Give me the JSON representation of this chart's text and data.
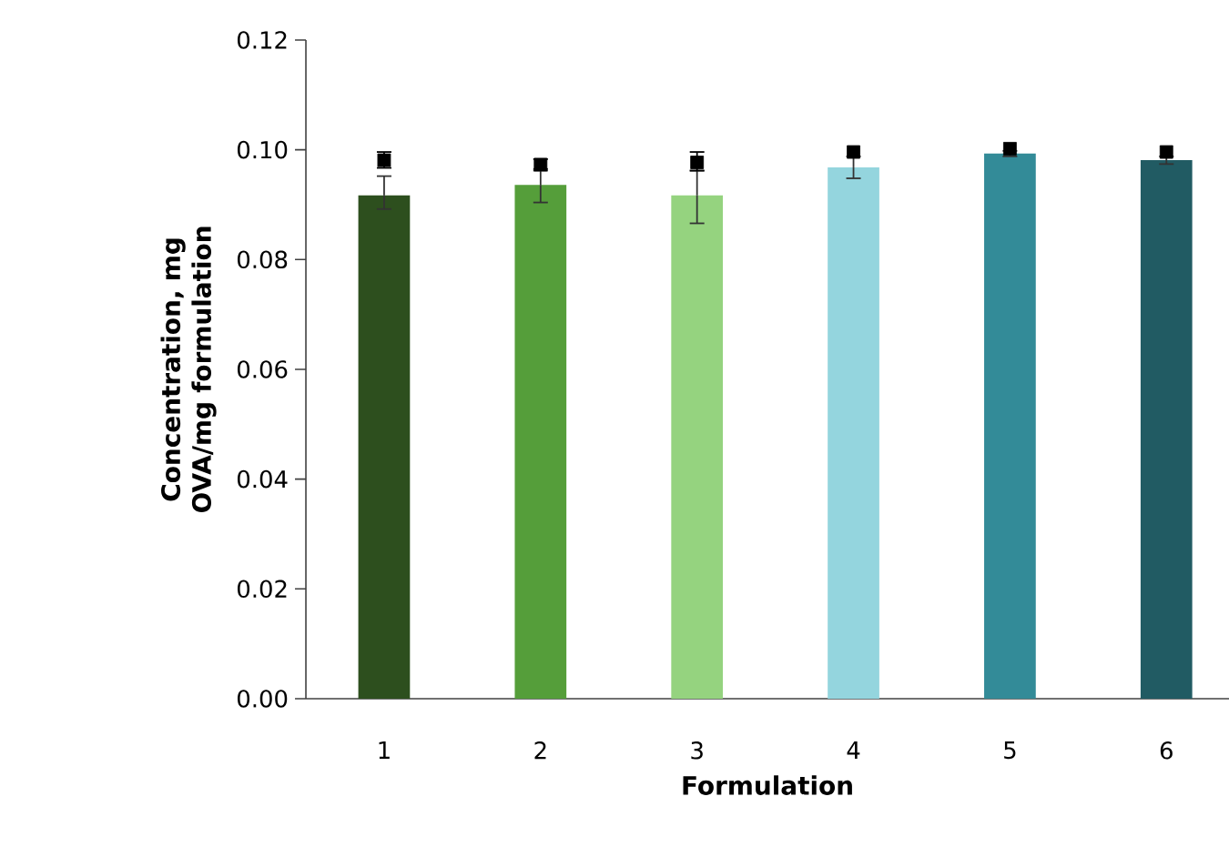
{
  "chart_data": {
    "type": "bar",
    "xlabel": "Formulation",
    "ylabel": "Concentration, mg OVA/mg formulation",
    "categories": [
      "1",
      "2",
      "3",
      "4",
      "5",
      "6"
    ],
    "ylim": [
      0,
      0.12
    ],
    "yticks": [
      {
        "value": 0,
        "label": "0.00"
      },
      {
        "value": 0.02,
        "label": "0.02"
      },
      {
        "value": 0.04,
        "label": "0.04"
      },
      {
        "value": 0.06,
        "label": "0.06"
      },
      {
        "value": 0.08,
        "label": "0.08"
      },
      {
        "value": 0.1,
        "label": "0.10"
      },
      {
        "value": 0.12,
        "label": "0.12"
      }
    ],
    "grid": false,
    "marker": "square",
    "series": [
      {
        "type": "bar",
        "colors": [
          "#2d4f1e",
          "#559e3a",
          "#95d37f",
          "#94d5de",
          "#338b98",
          "#215b63"
        ],
        "values": [
          0.0917,
          0.0936,
          0.0917,
          0.0968,
          0.0993,
          0.0981
        ],
        "errors": [
          [
            0.0892,
            0.0952
          ],
          [
            0.0904,
            0.0962
          ],
          [
            0.0866,
            0.0962
          ],
          [
            0.0948,
            0.0988
          ],
          [
            0.0988,
            0.0998
          ],
          [
            0.0974,
            0.0988
          ]
        ]
      },
      {
        "type": "scatter",
        "color": "#000000",
        "x": [
          "1",
          "2",
          "3",
          "4",
          "5",
          "6"
        ],
        "values": [
          0.0981,
          0.0973,
          0.0977,
          0.0996,
          0.1002,
          0.0996
        ],
        "errors": [
          [
            0.0967,
            0.0996
          ],
          [
            0.0965,
            0.0983
          ],
          [
            0.0962,
            0.0996
          ],
          null,
          null,
          null
        ]
      }
    ]
  }
}
